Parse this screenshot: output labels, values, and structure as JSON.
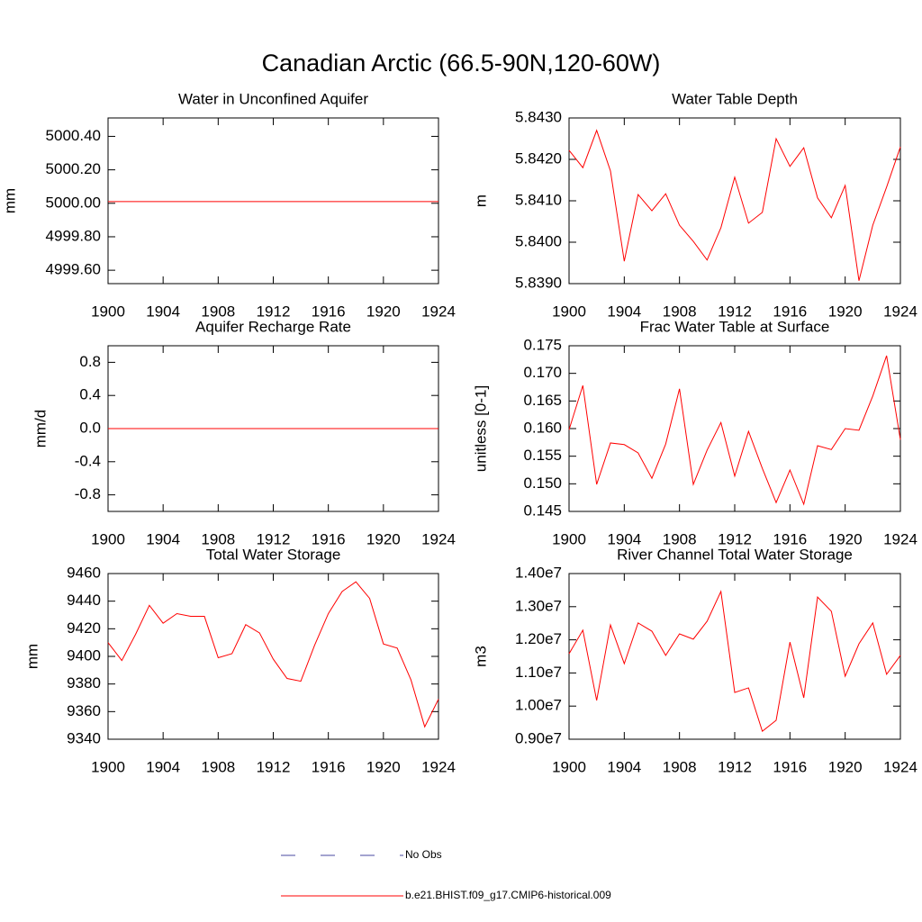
{
  "title": "Canadian Arctic (66.5-90N,120-60W)",
  "chart_data": [
    {
      "type": "line",
      "title": "Water in Unconfined Aquifer",
      "ylabel": "mm",
      "color": "#ff0000",
      "x": [
        1900,
        1901,
        1902,
        1903,
        1904,
        1905,
        1906,
        1907,
        1908,
        1909,
        1910,
        1911,
        1912,
        1913,
        1914,
        1915,
        1916,
        1917,
        1918,
        1919,
        1920,
        1921,
        1922,
        1923,
        1924
      ],
      "xlim": [
        1900,
        1924
      ],
      "xticks": [
        1900,
        1904,
        1908,
        1912,
        1916,
        1920,
        1924
      ],
      "ylim": [
        4999.52,
        5000.51
      ],
      "yticks": [
        {
          "value": 4999.6,
          "label": "4999.60"
        },
        {
          "value": 4999.8,
          "label": "4999.80"
        },
        {
          "value": 5000,
          "label": "5000.00"
        },
        {
          "value": 5000.2,
          "label": "5000.20"
        },
        {
          "value": 5000.4,
          "label": "5000.40"
        }
      ],
      "values": [
        5000.01,
        5000.01,
        5000.01,
        5000.01,
        5000.01,
        5000.01,
        5000.01,
        5000.01,
        5000.01,
        5000.01,
        5000.01,
        5000.01,
        5000.01,
        5000.01,
        5000.01,
        5000.01,
        5000.01,
        5000.01,
        5000.01,
        5000.01,
        5000.01,
        5000.01,
        5000.01,
        5000.01,
        5000.01
      ]
    },
    {
      "type": "line",
      "title": "Water Table Depth",
      "ylabel": "m",
      "color": "#ff0000",
      "x": [
        1900,
        1901,
        1902,
        1903,
        1904,
        1905,
        1906,
        1907,
        1908,
        1909,
        1910,
        1911,
        1912,
        1913,
        1914,
        1915,
        1916,
        1917,
        1918,
        1919,
        1920,
        1921,
        1922,
        1923,
        1924
      ],
      "xlim": [
        1900,
        1924
      ],
      "xticks": [
        1900,
        1904,
        1908,
        1912,
        1916,
        1920,
        1924
      ],
      "ylim": [
        5.839,
        5.843
      ],
      "yticks": [
        {
          "value": 5.839,
          "label": "5.8390"
        },
        {
          "value": 5.84,
          "label": "5.8400"
        },
        {
          "value": 5.841,
          "label": "5.8410"
        },
        {
          "value": 5.842,
          "label": "5.8420"
        },
        {
          "value": 5.843,
          "label": "5.8430"
        }
      ],
      "values": [
        5.84222,
        5.8418,
        5.8427,
        5.84172,
        5.83954,
        5.84115,
        5.84076,
        5.84117,
        5.84041,
        5.84002,
        5.83957,
        5.84035,
        5.84157,
        5.84046,
        5.84072,
        5.8425,
        5.84183,
        5.84228,
        5.84107,
        5.84059,
        5.84137,
        5.83907,
        5.84041,
        5.84133,
        5.8423
      ]
    },
    {
      "type": "line",
      "title": "Aquifer Recharge Rate",
      "ylabel": "mm/d",
      "color": "#ff0000",
      "x": [
        1900,
        1901,
        1902,
        1903,
        1904,
        1905,
        1906,
        1907,
        1908,
        1909,
        1910,
        1911,
        1912,
        1913,
        1914,
        1915,
        1916,
        1917,
        1918,
        1919,
        1920,
        1921,
        1922,
        1923,
        1924
      ],
      "xlim": [
        1900,
        1924
      ],
      "xticks": [
        1900,
        1904,
        1908,
        1912,
        1916,
        1920,
        1924
      ],
      "ylim": [
        -1,
        1
      ],
      "yticks": [
        -0.8,
        -0.4,
        {
          "value": 0,
          "label": "0.0"
        },
        0.4,
        0.8
      ],
      "values": [
        0,
        0,
        0,
        0,
        0,
        0,
        0,
        0,
        0,
        0,
        0,
        0,
        0,
        0,
        0,
        0,
        0,
        0,
        0,
        0,
        0,
        0,
        0,
        0,
        0
      ]
    },
    {
      "type": "line",
      "title": "Frac Water Table at Surface",
      "ylabel": "unitless [0-1]",
      "color": "#ff0000",
      "x": [
        1900,
        1901,
        1902,
        1903,
        1904,
        1905,
        1906,
        1907,
        1908,
        1909,
        1910,
        1911,
        1912,
        1913,
        1914,
        1915,
        1916,
        1917,
        1918,
        1919,
        1920,
        1921,
        1922,
        1923,
        1924
      ],
      "xlim": [
        1900,
        1924
      ],
      "xticks": [
        1900,
        1904,
        1908,
        1912,
        1916,
        1920,
        1924
      ],
      "ylim": [
        0.145,
        0.175
      ],
      "yticks": [
        0.145,
        {
          "value": 0.15,
          "label": "0.150"
        },
        0.155,
        {
          "value": 0.16,
          "label": "0.160"
        },
        0.165,
        {
          "value": 0.17,
          "label": "0.170"
        },
        0.175
      ],
      "values": [
        0.1598,
        0.1678,
        0.1499,
        0.1574,
        0.1571,
        0.1556,
        0.151,
        0.1572,
        0.1672,
        0.1499,
        0.1561,
        0.1611,
        0.1514,
        0.1595,
        0.1528,
        0.1466,
        0.1525,
        0.1463,
        0.1569,
        0.1562,
        0.16,
        0.1597,
        0.1659,
        0.1732,
        0.158
      ]
    },
    {
      "type": "line",
      "title": "Total Water Storage",
      "ylabel": "mm",
      "color": "#ff0000",
      "x": [
        1900,
        1901,
        1902,
        1903,
        1904,
        1905,
        1906,
        1907,
        1908,
        1909,
        1910,
        1911,
        1912,
        1913,
        1914,
        1915,
        1916,
        1917,
        1918,
        1919,
        1920,
        1921,
        1922,
        1923,
        1924
      ],
      "xlim": [
        1900,
        1924
      ],
      "xticks": [
        1900,
        1904,
        1908,
        1912,
        1916,
        1920,
        1924
      ],
      "ylim": [
        9340,
        9460
      ],
      "yticks": [
        9340,
        9360,
        9380,
        9400,
        9420,
        9440,
        9460
      ],
      "values": [
        9410,
        9397,
        9416,
        9437,
        9424,
        9431,
        9429,
        9429,
        9399,
        9402,
        9423,
        9417,
        9398,
        9384,
        9382,
        9408,
        9431,
        9447,
        9454,
        9442,
        9409,
        9406,
        9383,
        9349,
        9369
      ]
    },
    {
      "type": "line",
      "title": "River Channel Total Water Storage",
      "ylabel": "m3",
      "color": "#ff0000",
      "x": [
        1900,
        1901,
        1902,
        1903,
        1904,
        1905,
        1906,
        1907,
        1908,
        1909,
        1910,
        1911,
        1912,
        1913,
        1914,
        1915,
        1916,
        1917,
        1918,
        1919,
        1920,
        1921,
        1922,
        1923,
        1924
      ],
      "xlim": [
        1900,
        1924
      ],
      "xticks": [
        1900,
        1904,
        1908,
        1912,
        1916,
        1920,
        1924
      ],
      "ylim": [
        9000000,
        14000000
      ],
      "yticks": [
        {
          "value": 9000000,
          "label": "0.90e7"
        },
        {
          "value": 10000000,
          "label": "1.00e7"
        },
        {
          "value": 11000000,
          "label": "1.10e7"
        },
        {
          "value": 12000000,
          "label": "1.20e7"
        },
        {
          "value": 13000000,
          "label": "1.30e7"
        },
        {
          "value": 14000000,
          "label": "1.40e7"
        }
      ],
      "values": [
        11580000,
        12290000,
        10170000,
        12450000,
        11280000,
        12510000,
        12260000,
        11530000,
        12180000,
        12020000,
        12560000,
        13460000,
        10410000,
        10550000,
        9240000,
        9570000,
        11930000,
        10250000,
        13290000,
        12860000,
        10900000,
        11880000,
        12510000,
        10960000,
        11530000
      ]
    }
  ],
  "legend": [
    {
      "name": "No Obs",
      "color": "#4a4aa0",
      "dash": true
    },
    {
      "name": "b.e21.BHIST.f09_g17.CMIP6-historical.009",
      "color": "#ff0000",
      "dash": false
    }
  ]
}
